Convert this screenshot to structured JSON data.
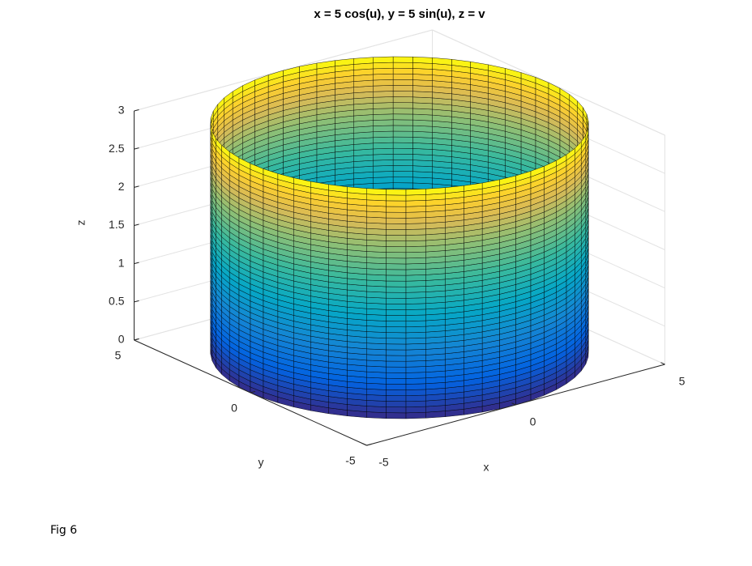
{
  "chart_data": {
    "type": "surface",
    "title": "x = 5 cos(u), y = 5 sin(u), z = v",
    "radius": 5,
    "vlim": [
      0,
      3
    ],
    "xlabel": "x",
    "ylabel": "y",
    "zlabel": "z",
    "xlim": [
      -5,
      5
    ],
    "ylim": [
      -5,
      5
    ],
    "zlim": [
      0,
      3
    ],
    "xticks": [
      -5,
      0,
      5
    ],
    "yticks": [
      -5,
      0,
      5
    ],
    "zticks": [
      0,
      0.5,
      1,
      1.5,
      2,
      2.5,
      3
    ],
    "grid": true,
    "colormap": "parula"
  },
  "caption": "Fig 6"
}
